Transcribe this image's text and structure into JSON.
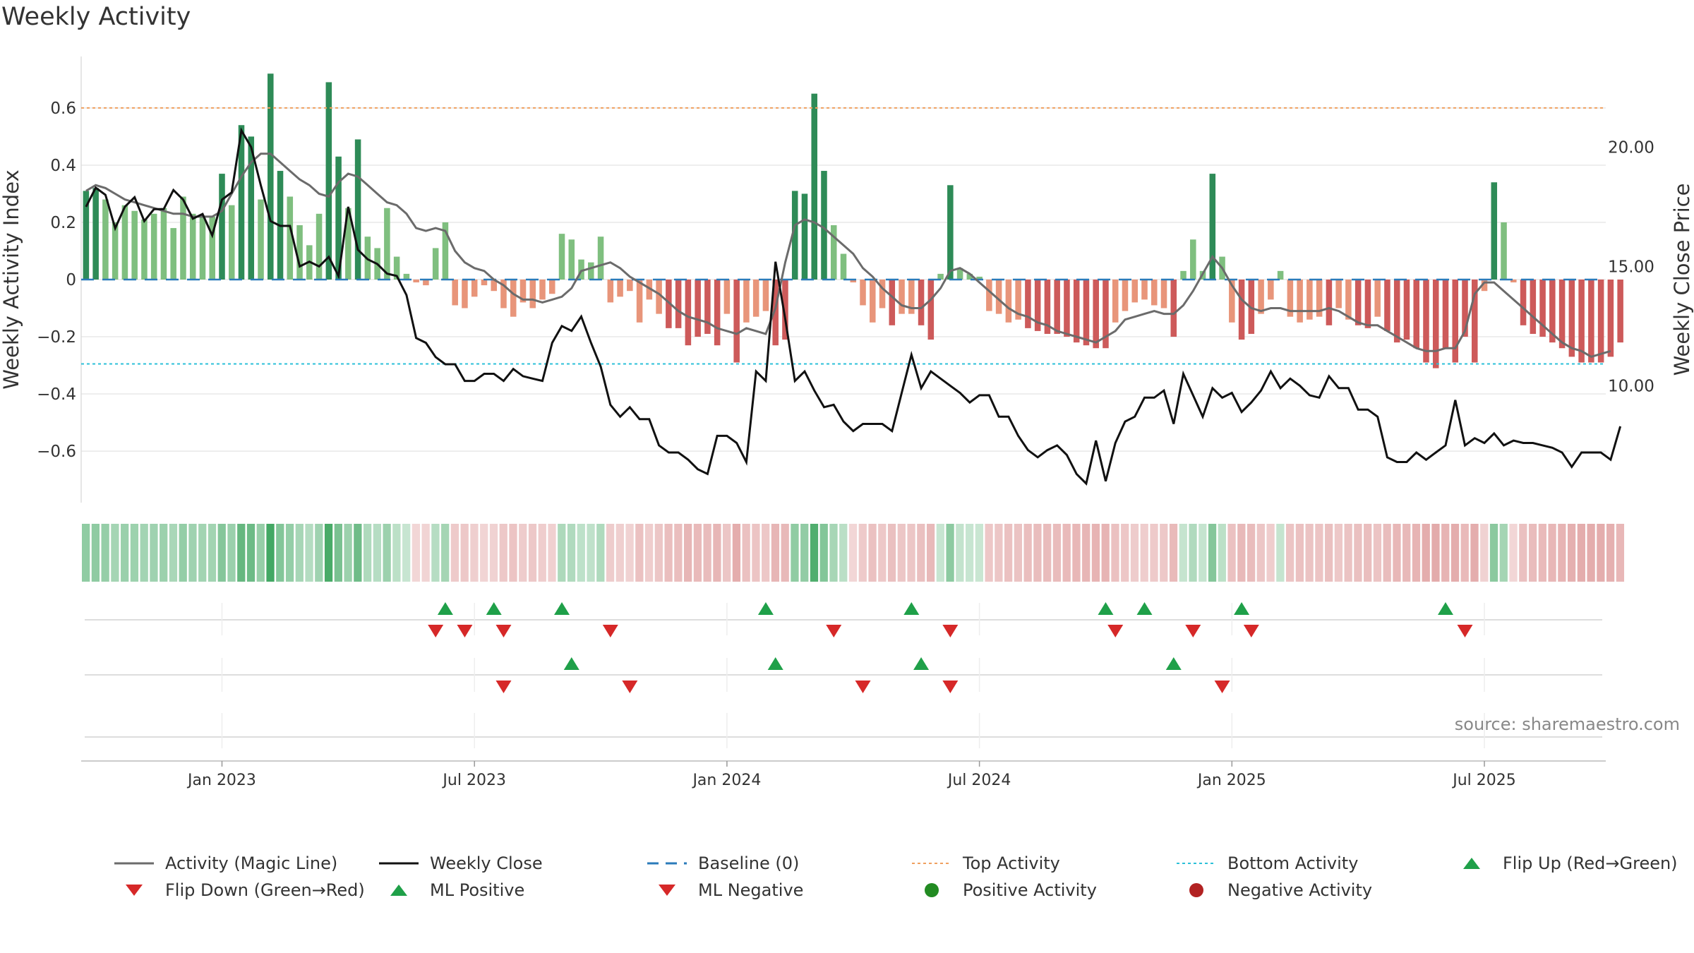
{
  "chart_data": {
    "type": "bar",
    "title": "Weekly Activity",
    "ylabel_left": "Weekly Activity Index",
    "ylabel_right": "Weekly Close Price",
    "y_left_ticks": [
      -0.6,
      -0.4,
      -0.2,
      0,
      0.2,
      0.4,
      0.6
    ],
    "y_left_tick_labels": [
      "−0.6",
      "−0.4",
      "−0.2",
      "0",
      "0.2",
      "0.4",
      "0.6"
    ],
    "y_left_range": [
      -0.78,
      0.78
    ],
    "y_right_ticks": [
      10,
      15,
      20
    ],
    "y_right_tick_labels": [
      "10.00",
      "15.00",
      "20.00"
    ],
    "y_right_range": [
      5.1,
      23.8
    ],
    "x_tick_labels": [
      "Jan 2023",
      "Jul 2023",
      "Jan 2024",
      "Jul 2024",
      "Jan 2025",
      "Jul 2025"
    ],
    "x_tick_weeks": [
      14.5,
      40.5,
      66.5,
      92.5,
      118.5,
      144.5
    ],
    "week_count": 157,
    "top_activity": 0.6,
    "bottom_activity": -0.295,
    "baseline": 0,
    "activity_bars": [
      0.31,
      0.32,
      0.28,
      0.2,
      0.26,
      0.24,
      0.21,
      0.23,
      0.25,
      0.18,
      0.29,
      0.23,
      0.22,
      0.22,
      0.37,
      0.26,
      0.54,
      0.5,
      0.28,
      0.72,
      0.38,
      0.29,
      0.19,
      0.12,
      0.23,
      0.69,
      0.43,
      0.25,
      0.49,
      0.15,
      0.11,
      0.25,
      0.08,
      0.02,
      -0.01,
      -0.02,
      0.11,
      0.2,
      -0.09,
      -0.1,
      -0.06,
      -0.02,
      -0.04,
      -0.1,
      -0.13,
      -0.08,
      -0.1,
      -0.07,
      -0.05,
      0.16,
      0.14,
      0.07,
      0.06,
      0.15,
      -0.08,
      -0.06,
      -0.04,
      -0.15,
      -0.07,
      -0.12,
      -0.17,
      -0.17,
      -0.23,
      -0.2,
      -0.19,
      -0.23,
      -0.12,
      -0.29,
      -0.15,
      -0.13,
      -0.11,
      -0.23,
      -0.21,
      0.31,
      0.3,
      0.65,
      0.38,
      0.19,
      0.09,
      -0.01,
      -0.09,
      -0.15,
      -0.1,
      -0.16,
      -0.12,
      -0.12,
      -0.16,
      -0.21,
      0.02,
      0.33,
      0.04,
      0.02,
      0.01,
      -0.11,
      -0.12,
      -0.15,
      -0.14,
      -0.17,
      -0.18,
      -0.19,
      -0.19,
      -0.2,
      -0.22,
      -0.23,
      -0.24,
      -0.24,
      -0.15,
      -0.11,
      -0.08,
      -0.07,
      -0.09,
      -0.1,
      -0.2,
      0.03,
      0.14,
      0.03,
      0.37,
      0.08,
      -0.15,
      -0.21,
      -0.19,
      -0.12,
      -0.07,
      0.03,
      -0.13,
      -0.15,
      -0.14,
      -0.13,
      -0.16,
      -0.1,
      -0.14,
      -0.16,
      -0.17,
      -0.13,
      -0.18,
      -0.22,
      -0.21,
      -0.24,
      -0.29,
      -0.31,
      -0.24,
      -0.29,
      -0.2,
      -0.29,
      -0.04,
      0.34,
      0.2,
      -0.01,
      -0.16,
      -0.19,
      -0.2,
      -0.22,
      -0.24,
      -0.27,
      -0.29,
      -0.29,
      -0.29,
      -0.27,
      -0.22
    ],
    "weekly_close": [
      17.5,
      18.3,
      18.0,
      16.6,
      17.5,
      17.9,
      16.9,
      17.4,
      17.4,
      18.2,
      17.8,
      17.0,
      17.2,
      16.3,
      17.8,
      18.1,
      20.7,
      20.0,
      18.4,
      16.9,
      16.7,
      16.7,
      15.0,
      15.2,
      15.0,
      15.4,
      14.6,
      17.5,
      15.7,
      15.3,
      15.1,
      14.7,
      14.6,
      13.8,
      12.0,
      11.8,
      11.2,
      10.9,
      10.9,
      10.2,
      10.2,
      10.5,
      10.5,
      10.2,
      10.7,
      10.4,
      10.3,
      10.2,
      11.8,
      12.5,
      12.3,
      12.9,
      11.8,
      10.8,
      9.2,
      8.7,
      9.1,
      8.6,
      8.6,
      7.5,
      7.2,
      7.2,
      6.9,
      6.5,
      6.3,
      7.9,
      7.9,
      7.6,
      6.8,
      10.6,
      10.2,
      15.2,
      12.8,
      10.2,
      10.6,
      9.8,
      9.1,
      9.2,
      8.5,
      8.1,
      8.4,
      8.4,
      8.4,
      8.1,
      9.7,
      11.3,
      9.9,
      10.6,
      10.3,
      10.0,
      9.7,
      9.3,
      9.6,
      9.6,
      8.7,
      8.7,
      7.9,
      7.3,
      7.0,
      7.3,
      7.5,
      7.1,
      6.3,
      5.9,
      7.7,
      6.0,
      7.6,
      8.5,
      8.7,
      9.5,
      9.5,
      9.8,
      8.4,
      10.5,
      9.6,
      8.7,
      9.9,
      9.5,
      9.7,
      8.9,
      9.3,
      9.8,
      10.6,
      9.9,
      10.3,
      10.0,
      9.6,
      9.5,
      10.4,
      9.9,
      9.9,
      9.0,
      9.0,
      8.7,
      7.0,
      6.8,
      6.8,
      7.2,
      6.9,
      7.2,
      7.5,
      9.4,
      7.5,
      7.8,
      7.6,
      8.0,
      7.5,
      7.7,
      7.6,
      7.6,
      7.5,
      7.4,
      7.2,
      6.6,
      7.2,
      7.2,
      7.2,
      6.9,
      8.3
    ],
    "magic_line": [
      0.31,
      0.33,
      0.32,
      0.3,
      0.28,
      0.27,
      0.26,
      0.25,
      0.24,
      0.23,
      0.23,
      0.22,
      0.22,
      0.22,
      0.24,
      0.3,
      0.36,
      0.41,
      0.44,
      0.44,
      0.41,
      0.38,
      0.35,
      0.33,
      0.3,
      0.29,
      0.34,
      0.37,
      0.36,
      0.33,
      0.3,
      0.27,
      0.26,
      0.23,
      0.18,
      0.17,
      0.18,
      0.17,
      0.1,
      0.06,
      0.04,
      0.03,
      0.0,
      -0.02,
      -0.05,
      -0.07,
      -0.07,
      -0.08,
      -0.07,
      -0.06,
      -0.03,
      0.03,
      0.04,
      0.05,
      0.06,
      0.04,
      0.01,
      -0.01,
      -0.03,
      -0.05,
      -0.08,
      -0.11,
      -0.13,
      -0.14,
      -0.15,
      -0.17,
      -0.18,
      -0.19,
      -0.17,
      -0.18,
      -0.19,
      -0.1,
      0.06,
      0.19,
      0.21,
      0.2,
      0.18,
      0.15,
      0.12,
      0.09,
      0.04,
      0.01,
      -0.03,
      -0.06,
      -0.09,
      -0.1,
      -0.1,
      -0.07,
      -0.03,
      0.03,
      0.04,
      0.02,
      -0.01,
      -0.04,
      -0.07,
      -0.1,
      -0.12,
      -0.13,
      -0.15,
      -0.16,
      -0.18,
      -0.19,
      -0.2,
      -0.21,
      -0.22,
      -0.2,
      -0.18,
      -0.14,
      -0.13,
      -0.12,
      -0.11,
      -0.12,
      -0.12,
      -0.09,
      -0.04,
      0.02,
      0.08,
      0.04,
      -0.02,
      -0.07,
      -0.1,
      -0.11,
      -0.1,
      -0.1,
      -0.11,
      -0.11,
      -0.11,
      -0.11,
      -0.1,
      -0.11,
      -0.13,
      -0.15,
      -0.16,
      -0.16,
      -0.18,
      -0.2,
      -0.22,
      -0.24,
      -0.25,
      -0.25,
      -0.24,
      -0.24,
      -0.18,
      -0.05,
      -0.01,
      -0.01,
      -0.04,
      -0.07,
      -0.1,
      -0.13,
      -0.16,
      -0.19,
      -0.22,
      -0.24,
      -0.25,
      -0.27,
      -0.26,
      -0.25
    ],
    "flip_up_weeks": [
      37,
      42,
      49,
      70,
      85,
      105,
      109,
      119,
      140
    ],
    "flip_down_weeks": [
      36,
      39,
      43,
      54,
      77,
      89,
      106,
      114,
      120,
      142
    ],
    "ml_positive_weeks": [
      50,
      71,
      86,
      112
    ],
    "ml_negative_weeks": [
      43,
      56,
      80,
      89,
      117
    ]
  },
  "source_text": "source: sharemaestro.com",
  "legend": [
    {
      "label": "Activity (Magic Line)",
      "marker": "solid-line",
      "color": "#6b6b6b"
    },
    {
      "label": "Weekly Close",
      "marker": "solid-line",
      "color": "#111111"
    },
    {
      "label": "Baseline (0)",
      "marker": "dashed-line",
      "color": "#2b7bba"
    },
    {
      "label": "Top Activity",
      "marker": "dotted-line",
      "color": "#f0a060"
    },
    {
      "label": "Bottom Activity",
      "marker": "dotted-line",
      "color": "#2cc0d8"
    },
    {
      "label": "Flip Up (Red→Green)",
      "marker": "triangle-up",
      "color": "#1fa049"
    },
    {
      "label": "Flip Down (Green→Red)",
      "marker": "triangle-down",
      "color": "#d62828"
    },
    {
      "label": "ML Positive",
      "marker": "triangle-up",
      "color": "#1fa049"
    },
    {
      "label": "ML Negative",
      "marker": "triangle-down",
      "color": "#d62828"
    },
    {
      "label": "Positive Activity",
      "marker": "circle",
      "color": "#228b22"
    },
    {
      "label": "Negative Activity",
      "marker": "circle",
      "color": "#b22222"
    }
  ]
}
